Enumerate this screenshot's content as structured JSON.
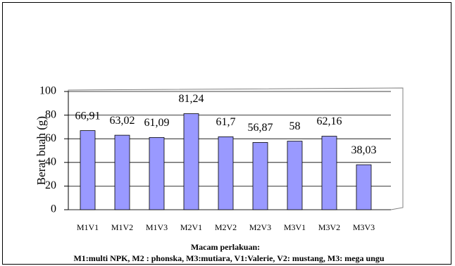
{
  "chart_data": {
    "type": "bar",
    "y_label": "Berat buah (g)",
    "x_label": "Macam perlakuan:",
    "note": "M1:multi NPK, M2 : phonska, M3:mutiara, V1:Valerie, V2: mustang, M3: mega ungu",
    "categories": [
      "M1V1",
      "M1V2",
      "M1V3",
      "M2V1",
      "M2V2",
      "M2V3",
      "M3V1",
      "M3V2",
      "M3V3"
    ],
    "values": [
      66.91,
      63.02,
      61.09,
      81.24,
      61.7,
      56.87,
      58,
      62.16,
      38.03
    ],
    "value_labels": [
      "66,91",
      "63,02",
      "61,09",
      "81,24",
      "61,7",
      "56,87",
      "58",
      "62,16",
      "38,03"
    ],
    "color": "#9999ff",
    "ylim": [
      0,
      100
    ],
    "yticks": [
      0,
      20,
      40,
      60,
      80,
      100
    ],
    "grid": true
  }
}
